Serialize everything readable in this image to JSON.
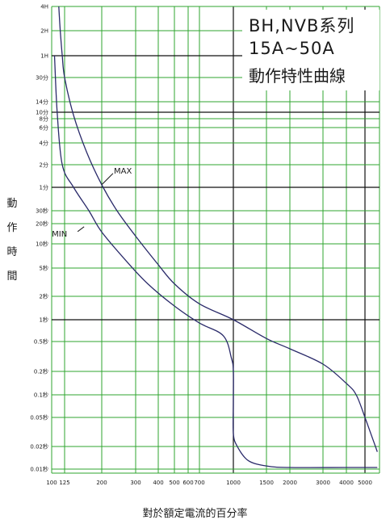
{
  "title": {
    "line1": "BH,NVB系列",
    "line2": "15A~50A",
    "line3": "動作特性曲線"
  },
  "axes": {
    "ylabel": "動作時間",
    "xlabel": "對於額定電流的百分率"
  },
  "colors": {
    "grid_green": "#2fa52f",
    "grid_black": "#111111",
    "curve": "#2a2a6a"
  },
  "chart_data": {
    "type": "line",
    "title": "BH,NVB系列 15A~50A 動作特性曲線",
    "xlabel": "對於額定電流的百分率",
    "ylabel": "動作時間",
    "x_scale": "log",
    "y_scale": "log",
    "grid": true,
    "xlim": [
      100,
      5800
    ],
    "ylim": [
      0.01,
      14400
    ],
    "x_ticks": [
      {
        "value": 100,
        "label": "100"
      },
      {
        "value": 125,
        "label": "125"
      },
      {
        "value": 200,
        "label": "200"
      },
      {
        "value": 300,
        "label": "300"
      },
      {
        "value": 400,
        "label": "400"
      },
      {
        "value": 500,
        "label": "500"
      },
      {
        "value": 600,
        "label": "600"
      },
      {
        "value": 700,
        "label": "700"
      },
      {
        "value": 1000,
        "label": "1000"
      },
      {
        "value": 1500,
        "label": "1500"
      },
      {
        "value": 2000,
        "label": "2000"
      },
      {
        "value": 3000,
        "label": "3000"
      },
      {
        "value": 4000,
        "label": "4000"
      },
      {
        "value": 5000,
        "label": "5000"
      }
    ],
    "y_ticks": [
      {
        "value": 14400,
        "label": "4H"
      },
      {
        "value": 7200,
        "label": "2H"
      },
      {
        "value": 3600,
        "label": "1H"
      },
      {
        "value": 1800,
        "label": "30分"
      },
      {
        "value": 840,
        "label": "14分"
      },
      {
        "value": 600,
        "label": "10分"
      },
      {
        "value": 480,
        "label": "8分"
      },
      {
        "value": 360,
        "label": "6分"
      },
      {
        "value": 240,
        "label": "4分"
      },
      {
        "value": 120,
        "label": "2分"
      },
      {
        "value": 60,
        "label": "1分"
      },
      {
        "value": 30,
        "label": "30秒"
      },
      {
        "value": 20,
        "label": "20秒"
      },
      {
        "value": 10,
        "label": "10秒"
      },
      {
        "value": 5,
        "label": "5秒"
      },
      {
        "value": 2,
        "label": "2秒"
      },
      {
        "value": 1,
        "label": "1秒"
      },
      {
        "value": 0.5,
        "label": "0.5秒"
      },
      {
        "value": 0.2,
        "label": "0.2秒"
      },
      {
        "value": 0.1,
        "label": "0.1秒"
      },
      {
        "value": 0.05,
        "label": "0.05秒"
      },
      {
        "value": 0.02,
        "label": "0.02秒"
      },
      {
        "value": 0.01,
        "label": "0.01秒"
      }
    ],
    "series": [
      {
        "name": "MAX",
        "points": [
          [
            113,
            14400
          ],
          [
            116,
            7200
          ],
          [
            120,
            3600
          ],
          [
            125,
            1800
          ],
          [
            140,
            540
          ],
          [
            165,
            180
          ],
          [
            200,
            65
          ],
          [
            240,
            30
          ],
          [
            300,
            13
          ],
          [
            400,
            5.5
          ],
          [
            500,
            3
          ],
          [
            700,
            1.6
          ],
          [
            1000,
            1
          ],
          [
            1500,
            0.55
          ],
          [
            2000,
            0.4
          ],
          [
            3000,
            0.25
          ],
          [
            4000,
            0.14
          ],
          [
            4500,
            0.1
          ],
          [
            5000,
            0.05
          ],
          [
            5500,
            0.025
          ],
          [
            5800,
            0.017
          ]
        ]
      },
      {
        "name": "MIN",
        "points": [
          [
            105,
            3600
          ],
          [
            110,
            600
          ],
          [
            120,
            120
          ],
          [
            140,
            60
          ],
          [
            170,
            30
          ],
          [
            200,
            15
          ],
          [
            270,
            6
          ],
          [
            350,
            3
          ],
          [
            500,
            1.5
          ],
          [
            700,
            0.9
          ],
          [
            900,
            0.6
          ],
          [
            980,
            0.3
          ],
          [
            1000,
            0.2
          ],
          [
            1000,
            0.08
          ],
          [
            1000,
            0.03
          ],
          [
            1050,
            0.02
          ],
          [
            1200,
            0.013
          ],
          [
            1500,
            0.011
          ],
          [
            2000,
            0.0105
          ],
          [
            4000,
            0.0105
          ],
          [
            5800,
            0.0105
          ]
        ]
      }
    ],
    "annotations": [
      {
        "text": "MAX",
        "series": "MAX"
      },
      {
        "text": "MIN",
        "series": "MIN"
      }
    ]
  }
}
